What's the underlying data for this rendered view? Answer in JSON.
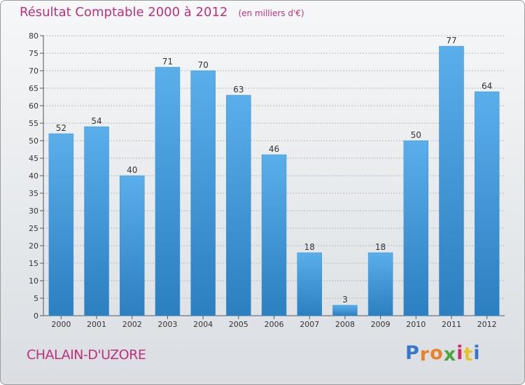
{
  "title": {
    "main": "Résultat Comptable 2000 à 2012",
    "unit": "(en milliers d'€)"
  },
  "commune": "CHALAIN-D'UZORE",
  "logo": {
    "letters": [
      {
        "char": "P",
        "color": "#3a76c8"
      },
      {
        "char": "r",
        "color": "#e8822a"
      },
      {
        "char": "o",
        "color": "#e8822a"
      },
      {
        "char": "x",
        "color": "#4aa63c"
      },
      {
        "char": "i",
        "color": "#d12a6a"
      },
      {
        "char": "t",
        "color": "#e8c22a"
      },
      {
        "char": "i",
        "color": "#3a76c8"
      }
    ]
  },
  "colors": {
    "bar_top": "#5aaeea",
    "bar_bottom": "#2c7fc0",
    "grid": "#b5b9bd",
    "axis_text": "#333333",
    "accent": "#c0307a"
  },
  "chart_data": {
    "type": "bar",
    "categories": [
      "2000",
      "2001",
      "2002",
      "2003",
      "2004",
      "2005",
      "2006",
      "2007",
      "2008",
      "2009",
      "2010",
      "2011",
      "2012"
    ],
    "values": [
      52,
      54,
      40,
      71,
      70,
      63,
      46,
      18,
      3,
      18,
      50,
      77,
      64
    ],
    "ylim": [
      0,
      80
    ],
    "yticks": [
      0,
      5,
      10,
      15,
      20,
      25,
      30,
      35,
      40,
      45,
      50,
      55,
      60,
      65,
      70,
      75,
      80
    ],
    "grid": true,
    "data_labels": true
  }
}
